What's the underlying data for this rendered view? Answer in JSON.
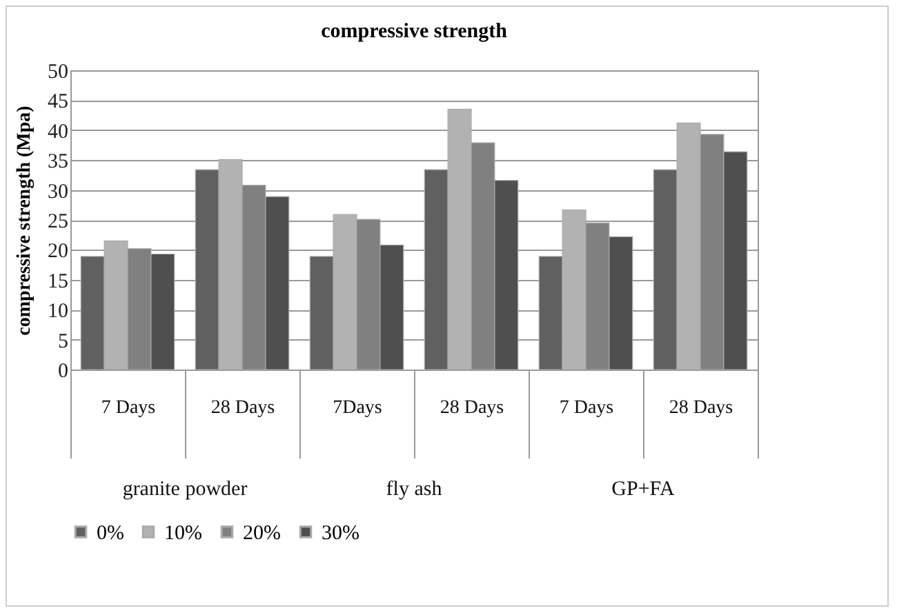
{
  "chart_data": {
    "type": "bar",
    "title": "compressive strength",
    "ylabel": "compressive strength (Mpa)",
    "categories": [
      "7 Days",
      "28 Days",
      "7Days",
      "28 Days",
      "7 Days",
      "28 Days"
    ],
    "annotations": [
      "granite powder",
      "fly ash",
      "GP+FA"
    ],
    "series": [
      {
        "name": "0%",
        "color": "#606060",
        "values": [
          18.9,
          33.4,
          18.9,
          33.4,
          18.9,
          33.4
        ]
      },
      {
        "name": "10%",
        "color": "#b2b2b2",
        "values": [
          21.5,
          35.1,
          25.9,
          43.5,
          26.7,
          41.2
        ]
      },
      {
        "name": "20%",
        "color": "#808080",
        "values": [
          20.2,
          30.8,
          25.1,
          37.9,
          24.5,
          39.3
        ]
      },
      {
        "name": "30%",
        "color": "#4f4f4f",
        "values": [
          19.3,
          28.9,
          20.8,
          31.6,
          22.2,
          36.4
        ]
      }
    ],
    "ylim": [
      0,
      50
    ],
    "yticks": [
      0,
      5,
      10,
      15,
      20,
      25,
      30,
      35,
      40,
      45,
      50
    ],
    "grid": "y",
    "legend": "bottom"
  }
}
